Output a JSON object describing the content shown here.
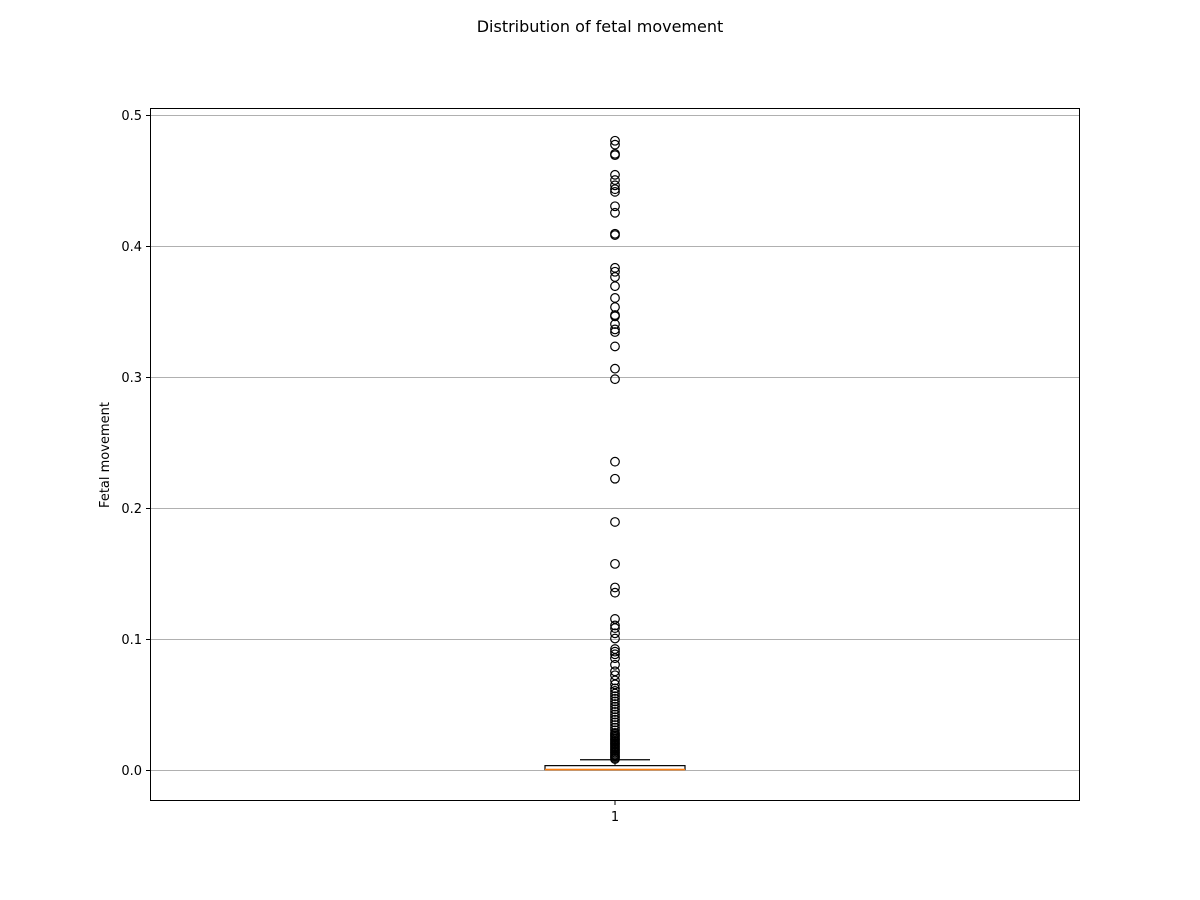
{
  "chart_data": {
    "type": "box",
    "title": "Distribution of fetal movement",
    "xlabel": "",
    "ylabel": "Fetal movement",
    "categories": [
      "1"
    ],
    "ylim": [
      -0.024,
      0.505
    ],
    "yticks": [
      0.0,
      0.1,
      0.2,
      0.3,
      0.4,
      0.5
    ],
    "ytick_labels": [
      "0.0",
      "0.1",
      "0.2",
      "0.3",
      "0.4",
      "0.5"
    ],
    "grid": "y-axis",
    "box": {
      "q1": 0.0,
      "median": 0.0,
      "q3": 0.003,
      "whisker_low": 0.0,
      "whisker_high": 0.0075
    },
    "outliers": [
      0.008,
      0.009,
      0.01,
      0.011,
      0.012,
      0.013,
      0.014,
      0.015,
      0.016,
      0.017,
      0.018,
      0.019,
      0.02,
      0.021,
      0.022,
      0.023,
      0.024,
      0.025,
      0.026,
      0.027,
      0.028,
      0.03,
      0.032,
      0.034,
      0.036,
      0.038,
      0.04,
      0.042,
      0.044,
      0.046,
      0.048,
      0.05,
      0.052,
      0.054,
      0.056,
      0.058,
      0.06,
      0.062,
      0.065,
      0.068,
      0.072,
      0.075,
      0.08,
      0.085,
      0.088,
      0.09,
      0.092,
      0.1,
      0.104,
      0.108,
      0.11,
      0.115,
      0.135,
      0.139,
      0.157,
      0.189,
      0.222,
      0.235,
      0.298,
      0.306,
      0.323,
      0.334,
      0.336,
      0.34,
      0.346,
      0.347,
      0.353,
      0.36,
      0.369,
      0.376,
      0.38,
      0.383,
      0.408,
      0.409,
      0.425,
      0.43,
      0.441,
      0.443,
      0.446,
      0.45,
      0.454,
      0.469,
      0.47,
      0.477,
      0.48
    ],
    "colors": {
      "box": "#000000",
      "median": "#ff7f0e",
      "outlier_edge": "#000000",
      "grid": "#b0b0b0"
    }
  }
}
